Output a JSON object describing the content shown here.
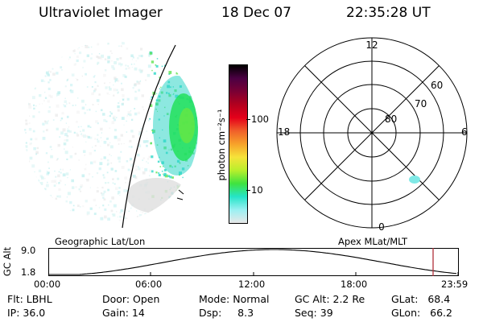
{
  "header": {
    "instrument": "Ultraviolet Imager",
    "date": "18 Dec 07",
    "time": "22:35:28 UT"
  },
  "colorbar": {
    "unit_label": "photon cm⁻²s⁻¹",
    "ticks": [
      "100",
      "10"
    ],
    "colors": [
      "#000000",
      "#4b0043",
      "#7a0034",
      "#b3001e",
      "#e5001a",
      "#f0602a",
      "#f7a22a",
      "#f6e33a",
      "#b8ef2c",
      "#3fe33f",
      "#25e4c8",
      "#9af0f2",
      "#e8e8e8"
    ]
  },
  "polar": {
    "mlt_labels": {
      "top": "12",
      "bottom": "0",
      "left": "18",
      "right": "6"
    },
    "lat_labels": [
      "60",
      "70",
      "80"
    ]
  },
  "timeline": {
    "left_title": "Geographic Lat/Lon",
    "right_title": "Apex MLat/MLT",
    "y_label": "GC Alt",
    "y_ticks": [
      "9.0",
      "1.8"
    ],
    "x_ticks": [
      "00:00",
      "06:00",
      "12:00",
      "18:00",
      "23:59"
    ]
  },
  "footer": {
    "flt": "Flt: LBHL",
    "ip": "IP: 36.0",
    "door": "Door: Open",
    "gain": "Gain: 14",
    "mode": "Mode: Normal",
    "dsp": "Dsp:     8.3",
    "gcalt": "GC Alt: 2.2 Re",
    "seq": "Seq: 39",
    "glat": "GLat:   68.4",
    "glon": "GLon:   66.2"
  }
}
